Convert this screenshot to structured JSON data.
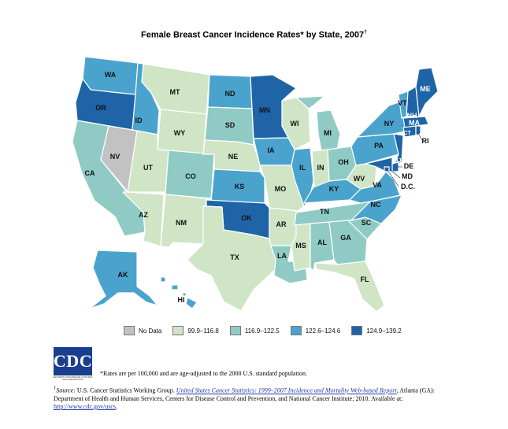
{
  "title": "Female Breast Cancer Incidence Rates* by State, 2007",
  "title_mark": "†",
  "colors": {
    "no_data": "#c2c2c2",
    "c1": "#cfe5c6",
    "c2": "#8fcbc4",
    "c3": "#4aa3cc",
    "c4": "#1e64a6"
  },
  "legend": [
    {
      "label": "No Data",
      "key": "no_data"
    },
    {
      "label": "99.9–116.8",
      "key": "c1"
    },
    {
      "label": "116.9–122.5",
      "key": "c2"
    },
    {
      "label": "122.6–124.6",
      "key": "c3"
    },
    {
      "label": "124.9–139.2",
      "key": "c4"
    }
  ],
  "states": {
    "WA": "c3",
    "OR": "c4",
    "CA": "c2",
    "NV": "no_data",
    "ID": "c3",
    "MT": "c1",
    "WY": "c1",
    "UT": "c1",
    "AZ": "c1",
    "CO": "c2",
    "NM": "c1",
    "ND": "c3",
    "SD": "c2",
    "NE": "c1",
    "KS": "c3",
    "OK": "c4",
    "TX": "c1",
    "MN": "c4",
    "IA": "c3",
    "MO": "c1",
    "AR": "c1",
    "LA": "c2",
    "WI": "c1",
    "IL": "c3",
    "MI": "c2",
    "IN": "c1",
    "OH": "c2",
    "KY": "c3",
    "TN": "c2",
    "MS": "c1",
    "AL": "c2",
    "GA": "c2",
    "FL": "c1",
    "SC": "c2",
    "NC": "c3",
    "VA": "c3",
    "WV": "c1",
    "PA": "c3",
    "NY": "c3",
    "VT": "c3",
    "NH": "c4",
    "ME": "c4",
    "MA": "c4",
    "CT": "c4",
    "RI": "c4",
    "NJ": "c4",
    "DE": "c4",
    "MD": "c4",
    "DC": "c4",
    "AK": "c3",
    "HI": "c3"
  },
  "labels": {
    "WA": "WA",
    "OR": "OR",
    "CA": "CA",
    "NV": "NV",
    "ID": "ID",
    "MT": "MT",
    "WY": "WY",
    "UT": "UT",
    "AZ": "AZ",
    "CO": "CO",
    "NM": "NM",
    "ND": "ND",
    "SD": "SD",
    "NE": "NE",
    "KS": "KS",
    "OK": "OK",
    "TX": "TX",
    "MN": "MN",
    "IA": "IA",
    "MO": "MO",
    "AR": "AR",
    "LA": "LA",
    "WI": "WI",
    "IL": "IL",
    "MI": "MI",
    "IN": "IN",
    "OH": "OH",
    "KY": "KY",
    "TN": "TN",
    "MS": "MS",
    "AL": "AL",
    "GA": "GA",
    "FL": "FL",
    "SC": "SC",
    "NC": "NC",
    "VA": "VA",
    "WV": "WV",
    "PA": "PA",
    "NY": "NY",
    "VT": "VT",
    "NH": "NH",
    "ME": "ME",
    "MA": "MA",
    "CT": "CT",
    "RI": "RI",
    "NJ": "NJ",
    "DE": "DE",
    "MD": "MD",
    "DC": "D.C.",
    "AK": "AK",
    "HI": "HI"
  },
  "logo": {
    "text": "CDC",
    "tagline": "CENTERS FOR DISEASE CONTROL AND PREVENTION"
  },
  "note": "*Rates are per 100,000 and are age-adjusted to the 2000 U.S. standard population.",
  "source": {
    "mark": "†",
    "prefix": "Source:",
    "text1": " U.S. Cancer Statistics Working Group. ",
    "link_title": "United States Cancer Statistics: 1999–2007 Incidence and     Mortality Web-based Report",
    "text2": ", Atlanta (GA): Department of Health and Human Services, Centers for Disease Control and Prevention, and National Cancer Institute; 2010. Available at: ",
    "url": "http://www.cdc.gov/uscs",
    "end": "."
  }
}
